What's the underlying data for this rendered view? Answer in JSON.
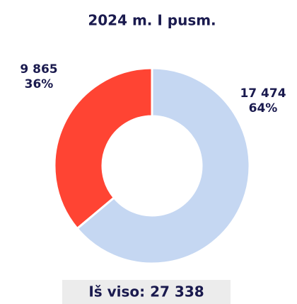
{
  "chart_data": {
    "type": "donut",
    "title": "2024 m. I pusm.",
    "categories": [
      null,
      null
    ],
    "values": [
      17474,
      9865
    ],
    "value_labels": [
      "17 474",
      "9 865"
    ],
    "percents": [
      64,
      36
    ],
    "percent_labels": [
      "64%",
      "36%"
    ],
    "colors": [
      "#c5d7f2",
      "#ff4433"
    ],
    "footer": "Iš viso: 27 338"
  }
}
